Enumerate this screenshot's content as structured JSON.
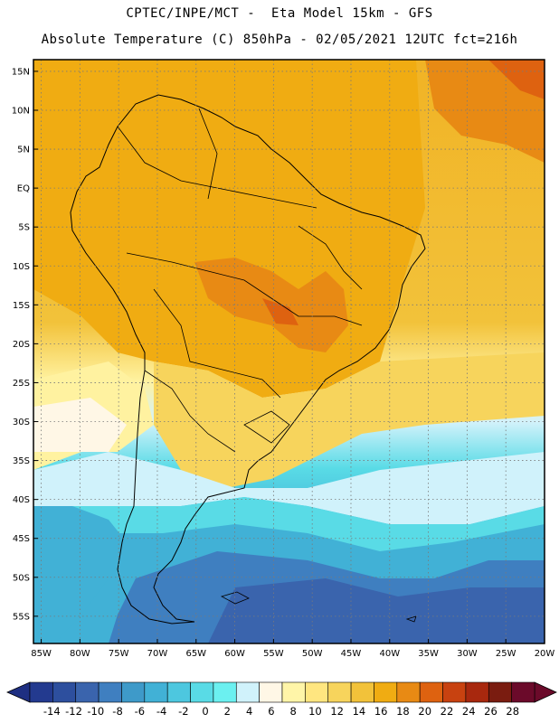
{
  "header": {
    "line1": "CPTEC/INPE/MCT -  Eta Model 15km - GFS",
    "line2": "Absolute Temperature (C) 850hPa - 02/05/2021 12UTC fct=216h"
  },
  "map": {
    "region": "South America",
    "projection": "latitude-longitude",
    "lon_range": [
      -86,
      -20
    ],
    "lat_range": [
      -58.5,
      16.5
    ],
    "lat_labels": [
      "15N",
      "10N",
      "5N",
      "EQ",
      "5S",
      "10S",
      "15S",
      "20S",
      "25S",
      "30S",
      "35S",
      "40S",
      "45S",
      "50S",
      "55S"
    ],
    "lon_labels": [
      "85W",
      "80W",
      "75W",
      "70W",
      "65W",
      "60W",
      "55W",
      "50W",
      "45W",
      "40W",
      "35W",
      "30W",
      "25W",
      "20W"
    ],
    "gridlines": "dotted"
  },
  "colorbar": {
    "labels": [
      "-14",
      "-12",
      "-10",
      "-8",
      "-6",
      "-4",
      "-2",
      "0",
      "2",
      "4",
      "6",
      "8",
      "10",
      "12",
      "14",
      "16",
      "18",
      "20",
      "22",
      "24",
      "26",
      "28"
    ],
    "colors": [
      "#233a8f",
      "#2d4f9e",
      "#3a64ad",
      "#3f7fc0",
      "#3e9ac9",
      "#41b1d6",
      "#4dc7df",
      "#59dbe6",
      "#6bf0f0",
      "#d0f2fb",
      "#fff7e6",
      "#fff5a8",
      "#ffe680",
      "#f7d45c",
      "#f2c23a",
      "#f0ac12",
      "#e88a14",
      "#de6210",
      "#c84210",
      "#a8280e",
      "#7a1c10",
      "#6b0a2a"
    ],
    "under_color": "#1e2f82",
    "over_color": "#6b0a2a"
  }
}
